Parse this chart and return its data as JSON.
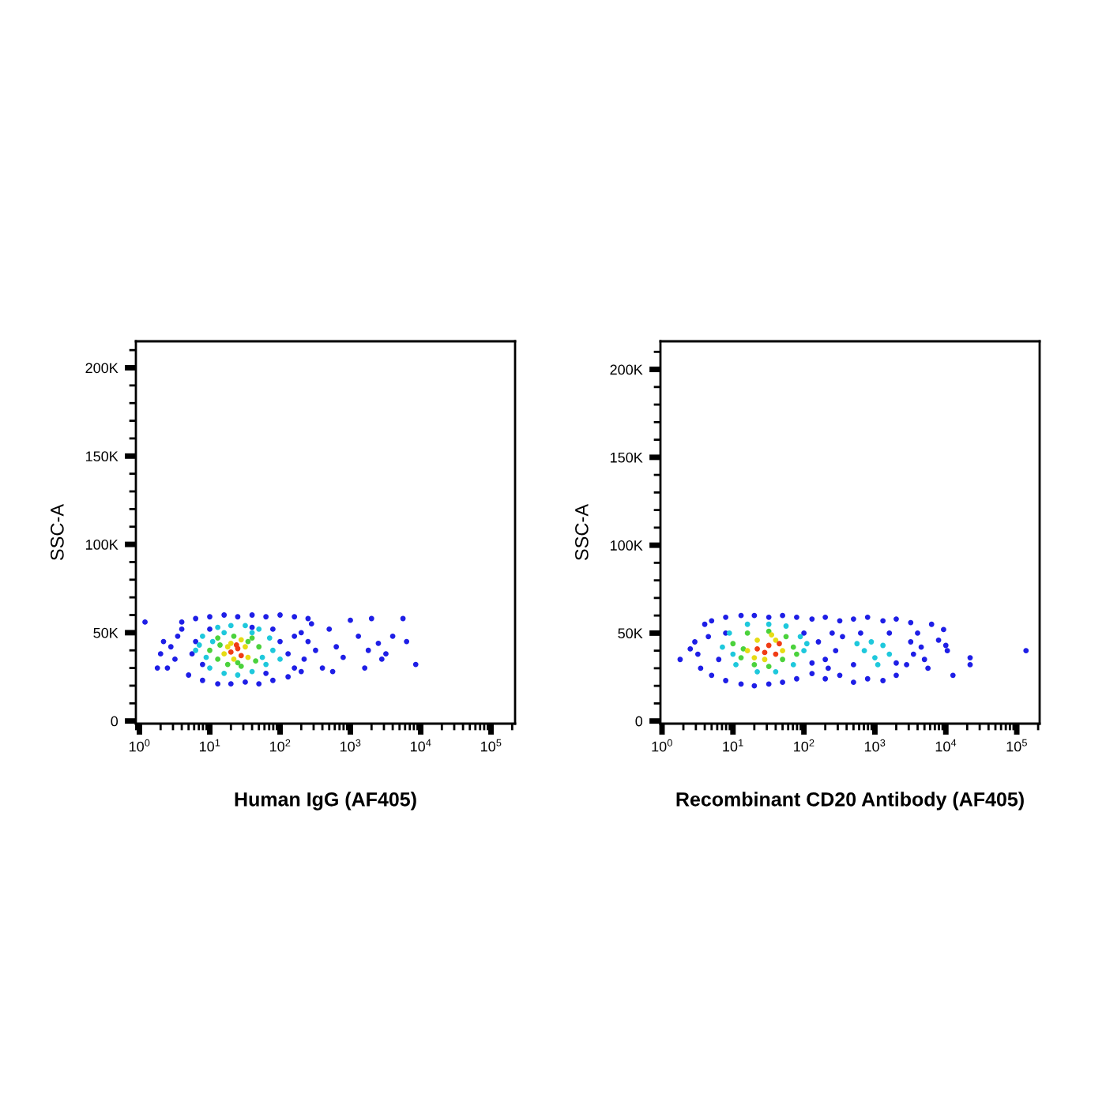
{
  "chart_data": [
    {
      "type": "scatter",
      "xlabel": "Human IgG (AF405)",
      "ylabel": "SSC-A",
      "log": "x",
      "marker": "circle",
      "xlim": [
        0.89,
        220000
      ],
      "xticks": [
        {
          "value": 1,
          "label": "10$^{0}$"
        },
        {
          "value": 10,
          "label": "10$^{1}$"
        },
        {
          "value": 100,
          "label": "10$^{2}$"
        },
        {
          "value": 1000,
          "label": "10$^{3}$"
        },
        {
          "value": 10000,
          "label": "10$^{4}$"
        },
        {
          "value": 100000,
          "label": "10$^{5}$"
        }
      ],
      "ylim": [
        -1500,
        215000
      ],
      "yticks": [
        0,
        {
          "value": 50000,
          "label": "50K"
        },
        {
          "value": 100000,
          "label": "100K"
        },
        {
          "value": 150000,
          "label": "150K"
        },
        {
          "value": 200000,
          "label": "200K"
        }
      ],
      "series": [
        {
          "color": "#1e1ee6",
          "x": [
            4,
            6.3,
            10,
            16,
            25,
            40,
            63,
            100,
            160,
            250,
            5,
            7.9,
            13,
            20,
            32,
            50,
            79,
            130,
            200,
            2.8,
            3.2,
            3.5,
            2.5,
            4,
            200,
            250,
            320,
            220,
            280,
            160,
            500,
            630,
            790,
            1000,
            1300,
            1600,
            1800,
            2000,
            2500,
            3200,
            4000,
            5600,
            6300,
            8500,
            400,
            560,
            2800,
            1.2,
            2,
            1.8,
            2.2,
            6.3,
            7.9,
            100,
            130,
            63,
            10,
            40,
            79,
            5.6,
            160
          ],
          "values": [
            56000,
            58000,
            59000,
            60000,
            59000,
            60000,
            59000,
            60000,
            59000,
            58000,
            26000,
            23000,
            21000,
            21000,
            22000,
            21000,
            23000,
            25000,
            28000,
            42000,
            35000,
            48000,
            30000,
            52000,
            50000,
            45000,
            40000,
            35000,
            55000,
            30000,
            52000,
            42000,
            36000,
            57000,
            48000,
            30000,
            40000,
            58000,
            44000,
            38000,
            48000,
            58000,
            45000,
            32000,
            30000,
            28000,
            35000,
            56000,
            38000,
            30000,
            45000,
            45000,
            32000,
            45000,
            38000,
            27000,
            52000,
            53000,
            52000,
            38000,
            48000
          ]
        },
        {
          "color": "#1ec8dc",
          "x": [
            6.3,
            7.9,
            10,
            13,
            16,
            25,
            40,
            63,
            79,
            71,
            50,
            32,
            20,
            8.9,
            56,
            11,
            100,
            16,
            40,
            7.1
          ],
          "values": [
            40000,
            48000,
            30000,
            53000,
            27000,
            26000,
            28000,
            32000,
            40000,
            47000,
            52000,
            54000,
            54000,
            36000,
            36000,
            45000,
            35000,
            50000,
            50000,
            43000
          ]
        },
        {
          "color": "#4bd23c",
          "x": [
            10,
            13,
            13,
            18,
            28,
            45,
            50,
            40,
            22,
            14,
            35,
            25
          ],
          "values": [
            40000,
            35000,
            47000,
            32000,
            31000,
            34000,
            42000,
            47000,
            48000,
            43000,
            45000,
            33000
          ]
        },
        {
          "color": "#e6dc14",
          "x": [
            16,
            20,
            32,
            35,
            22,
            28,
            18
          ],
          "values": [
            38000,
            44000,
            42000,
            36000,
            35000,
            46000,
            42000
          ]
        },
        {
          "color": "#f03c14",
          "x": [
            20,
            25,
            28,
            24
          ],
          "values": [
            39000,
            41000,
            37000,
            43000
          ]
        }
      ]
    },
    {
      "type": "scatter",
      "xlabel": "Recombinant CD20 Antibody (AF405)",
      "ylabel": "SSC-A",
      "log": "x",
      "marker": "circle",
      "xlim": [
        0.95,
        210000
      ],
      "xticks": [
        {
          "value": 1,
          "label": "10$^{0}$"
        },
        {
          "value": 10,
          "label": "10$^{1}$"
        },
        {
          "value": 100,
          "label": "10$^{2}$"
        },
        {
          "value": 1000,
          "label": "10$^{3}$"
        },
        {
          "value": 10000,
          "label": "10$^{4}$"
        },
        {
          "value": 100000,
          "label": "10$^{5}$"
        }
      ],
      "ylim": [
        -1500,
        216000
      ],
      "yticks": [
        0,
        {
          "value": 50000,
          "label": "50K"
        },
        {
          "value": 100000,
          "label": "100K"
        },
        {
          "value": 150000,
          "label": "150K"
        },
        {
          "value": 200000,
          "label": "200K"
        }
      ],
      "series": [
        {
          "color": "#1e1ee6",
          "x": [
            5,
            7.9,
            13,
            20,
            32,
            50,
            79,
            130,
            200,
            320,
            500,
            790,
            1300,
            2000,
            3200,
            5,
            7.9,
            13,
            20,
            32,
            50,
            79,
            130,
            200,
            320,
            500,
            790,
            1300,
            2000,
            1.8,
            2.9,
            4,
            3.2,
            3.5,
            4.5,
            2.5,
            160,
            200,
            250,
            280,
            220,
            350,
            3200,
            3500,
            2800,
            4000,
            4500,
            5000,
            6300,
            7900,
            9300,
            10000,
            10500,
            12600,
            22000,
            22000,
            135000,
            5600,
            630,
            1600,
            500,
            2000,
            100,
            130,
            7.9,
            6.3
          ],
          "values": [
            57000,
            59000,
            60000,
            60000,
            59000,
            60000,
            59000,
            58000,
            59000,
            57000,
            58000,
            59000,
            57000,
            58000,
            56000,
            26000,
            23000,
            21000,
            20000,
            21000,
            22000,
            24000,
            27000,
            24000,
            26000,
            22000,
            24000,
            23000,
            26000,
            35000,
            45000,
            55000,
            38000,
            30000,
            48000,
            41000,
            45000,
            35000,
            50000,
            40000,
            30000,
            48000,
            45000,
            38000,
            32000,
            50000,
            42000,
            35000,
            55000,
            46000,
            52000,
            43000,
            40000,
            26000,
            36000,
            32000,
            40000,
            30000,
            50000,
            50000,
            32000,
            33000,
            50000,
            33000,
            50000,
            35000
          ]
        },
        {
          "color": "#1ec8dc",
          "x": [
            7.1,
            8.9,
            11,
            16,
            22,
            40,
            71,
            100,
            89,
            56,
            32,
            10,
            110,
            710,
            1000,
            1300,
            1600,
            890,
            1100,
            560
          ],
          "values": [
            42000,
            50000,
            32000,
            55000,
            28000,
            28000,
            32000,
            40000,
            48000,
            54000,
            55000,
            38000,
            44000,
            40000,
            36000,
            43000,
            38000,
            45000,
            32000,
            44000
          ]
        },
        {
          "color": "#4bd23c",
          "x": [
            10,
            13,
            16,
            20,
            32,
            50,
            71,
            56,
            32,
            14,
            79
          ],
          "values": [
            44000,
            36000,
            50000,
            32000,
            31000,
            35000,
            42000,
            48000,
            51000,
            41000,
            38000
          ]
        },
        {
          "color": "#e6dc14",
          "x": [
            16,
            22,
            40,
            50,
            28,
            20,
            35
          ],
          "values": [
            40000,
            46000,
            46000,
            40000,
            35000,
            36000,
            49000
          ]
        },
        {
          "color": "#f03c14",
          "x": [
            22,
            32,
            40,
            28,
            45
          ],
          "values": [
            41000,
            43000,
            38000,
            39000,
            44000
          ]
        }
      ]
    }
  ]
}
